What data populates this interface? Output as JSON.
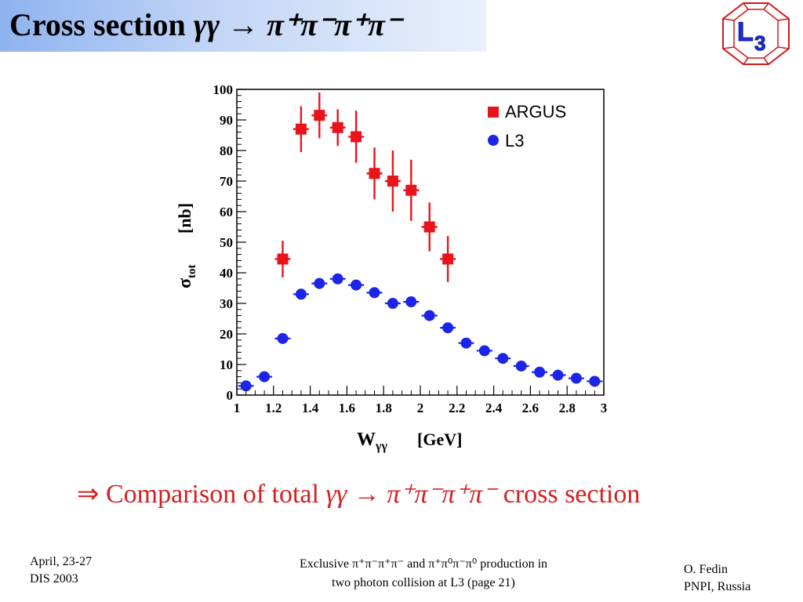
{
  "title": {
    "prefix": "Cross section ",
    "reaction": "γγ → π⁺π⁻π⁺π⁻"
  },
  "logo": {
    "text": "L3"
  },
  "comparison": {
    "prefix": "⇒ Comparison of total ",
    "reaction": "γγ → π⁺π⁻π⁺π⁻",
    "suffix": " cross section"
  },
  "footer": {
    "left_line1": "April, 23-27",
    "left_line2": "DIS 2003",
    "center_line1": "Exclusive   π⁺π⁻π⁺π⁻ and π⁺π⁰π⁻π⁰ production in",
    "center_line2": "two photon collision at L3  (page 21)",
    "right_line1": "O. Fedin",
    "right_line2": "PNPI, Russia"
  },
  "chart_data": {
    "type": "scatter",
    "xlabel": "W",
    "xlabel_sub": "γγ",
    "xlabel_unit": "[GeV]",
    "ylabel": "σ",
    "ylabel_sub": "tot",
    "ylabel_unit": "[nb]",
    "xlim": [
      1,
      3
    ],
    "ylim": [
      0,
      100
    ],
    "xticks": [
      "1",
      "1.2",
      "1.4",
      "1.6",
      "1.8",
      "2",
      "2.2",
      "2.4",
      "2.6",
      "2.8",
      "3"
    ],
    "yticks": [
      "0",
      "10",
      "20",
      "30",
      "40",
      "50",
      "60",
      "70",
      "80",
      "90",
      "100"
    ],
    "legend_position": "top-right",
    "colors": {
      "ARGUS": "#e8141c",
      "L3": "#1c24e8"
    },
    "series": [
      {
        "name": "ARGUS",
        "marker": "square",
        "x": [
          1.25,
          1.35,
          1.45,
          1.55,
          1.65,
          1.75,
          1.85,
          1.95,
          2.05,
          2.15
        ],
        "y": [
          44.5,
          87,
          91.5,
          87.5,
          84.5,
          72.5,
          70,
          67,
          55,
          44.5
        ],
        "yerr": [
          6,
          7.5,
          7.5,
          6,
          8.5,
          8.5,
          10,
          10,
          8,
          7.5
        ]
      },
      {
        "name": "L3",
        "marker": "circle",
        "x": [
          1.05,
          1.15,
          1.25,
          1.35,
          1.45,
          1.55,
          1.65,
          1.75,
          1.85,
          1.95,
          2.05,
          2.15,
          2.25,
          2.35,
          2.45,
          2.55,
          2.65,
          2.75,
          2.85,
          2.95
        ],
        "y": [
          3,
          6,
          18.5,
          33,
          36.5,
          38,
          36,
          33.5,
          30,
          30.5,
          26,
          22,
          17,
          14.5,
          12,
          9.5,
          7.5,
          6.5,
          5.5,
          4.5
        ],
        "yerr": [
          0.6,
          0.6,
          0.8,
          0.8,
          0.8,
          0.8,
          0.8,
          0.8,
          0.8,
          0.8,
          0.8,
          0.8,
          0.7,
          0.7,
          0.6,
          0.6,
          0.5,
          0.5,
          0.5,
          0.5
        ]
      }
    ]
  }
}
